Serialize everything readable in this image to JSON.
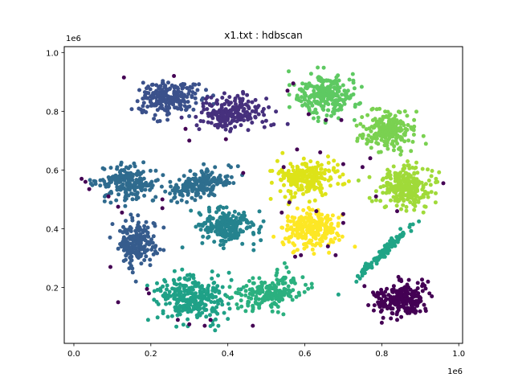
{
  "chart_data": {
    "type": "scatter",
    "title": "x1.txt : hdbscan",
    "xlabel": "",
    "ylabel": "",
    "x_offset_label": "1e6",
    "y_offset_label": "1e6",
    "xlim": [
      -0.025,
      1.01
    ],
    "ylim": [
      0.01,
      1.02
    ],
    "x_ticks": [
      0.0,
      0.2,
      0.4,
      0.6,
      0.8,
      1.0
    ],
    "x_tick_labels": [
      "0.0",
      "0.2",
      "0.4",
      "0.6",
      "0.8",
      "1.0"
    ],
    "y_ticks": [
      0.2,
      0.4,
      0.6,
      0.8,
      1.0
    ],
    "y_tick_labels": [
      "0.2",
      "0.4",
      "0.6",
      "0.8",
      "1.0"
    ],
    "grid": false,
    "legend": "none",
    "colormap": "viridis",
    "noise_color": "#440154",
    "clusters": [
      {
        "cx": 0.245,
        "cy": 0.845,
        "sx": 0.038,
        "sy": 0.028,
        "n": 230,
        "color": "#3b518b"
      },
      {
        "cx": 0.415,
        "cy": 0.795,
        "sx": 0.045,
        "sy": 0.028,
        "n": 200,
        "color": "#46307d"
      },
      {
        "cx": 0.135,
        "cy": 0.555,
        "sx": 0.038,
        "sy": 0.03,
        "n": 200,
        "color": "#2f6b8e"
      },
      {
        "cx": 0.335,
        "cy": 0.552,
        "sx": 0.045,
        "sy": 0.022,
        "n": 180,
        "color": "#2e6e8e",
        "slope": 0.35
      },
      {
        "cx": 0.165,
        "cy": 0.35,
        "sx": 0.025,
        "sy": 0.04,
        "n": 200,
        "color": "#365c8d"
      },
      {
        "cx": 0.395,
        "cy": 0.41,
        "sx": 0.04,
        "sy": 0.03,
        "n": 220,
        "color": "#25838e"
      },
      {
        "cx": 0.305,
        "cy": 0.165,
        "sx": 0.048,
        "sy": 0.035,
        "n": 280,
        "color": "#1fa187"
      },
      {
        "cx": 0.505,
        "cy": 0.185,
        "sx": 0.045,
        "sy": 0.028,
        "n": 200,
        "color": "#2bb07f",
        "slope": 0.3
      },
      {
        "cx": 0.605,
        "cy": 0.575,
        "sx": 0.04,
        "sy": 0.03,
        "n": 220,
        "color": "#dde318"
      },
      {
        "cx": 0.615,
        "cy": 0.4,
        "sx": 0.035,
        "sy": 0.032,
        "n": 250,
        "color": "#fde725"
      },
      {
        "cx": 0.655,
        "cy": 0.855,
        "sx": 0.038,
        "sy": 0.035,
        "n": 250,
        "color": "#5ec962"
      },
      {
        "cx": 0.815,
        "cy": 0.73,
        "sx": 0.035,
        "sy": 0.032,
        "n": 230,
        "color": "#7ad151"
      },
      {
        "cx": 0.86,
        "cy": 0.545,
        "sx": 0.035,
        "sy": 0.035,
        "n": 250,
        "color": "#a0da39"
      },
      {
        "cx": 0.8,
        "cy": 0.315,
        "sx": 0.035,
        "sy": 0.0,
        "n": 110,
        "color": "#20a486",
        "slope": 1.25,
        "line": true
      },
      {
        "cx": 0.85,
        "cy": 0.16,
        "sx": 0.032,
        "sy": 0.028,
        "n": 220,
        "color": "#440154"
      }
    ],
    "noise_points": [
      [
        0.13,
        0.915
      ],
      [
        0.26,
        0.92
      ],
      [
        0.29,
        0.74
      ],
      [
        0.395,
        0.705
      ],
      [
        0.3,
        0.7
      ],
      [
        0.57,
        0.895
      ],
      [
        0.555,
        0.87
      ],
      [
        0.61,
        0.79
      ],
      [
        0.655,
        0.77
      ],
      [
        0.695,
        0.77
      ],
      [
        0.58,
        0.67
      ],
      [
        0.64,
        0.66
      ],
      [
        0.545,
        0.61
      ],
      [
        0.7,
        0.62
      ],
      [
        0.75,
        0.61
      ],
      [
        0.77,
        0.64
      ],
      [
        0.96,
        0.555
      ],
      [
        0.785,
        0.51
      ],
      [
        0.84,
        0.46
      ],
      [
        0.02,
        0.57
      ],
      [
        0.03,
        0.56
      ],
      [
        0.04,
        0.535
      ],
      [
        0.09,
        0.51
      ],
      [
        0.115,
        0.475
      ],
      [
        0.125,
        0.455
      ],
      [
        0.23,
        0.5
      ],
      [
        0.23,
        0.47
      ],
      [
        0.44,
        0.59
      ],
      [
        0.56,
        0.49
      ],
      [
        0.54,
        0.455
      ],
      [
        0.7,
        0.45
      ],
      [
        0.7,
        0.42
      ],
      [
        0.63,
        0.46
      ],
      [
        0.68,
        0.31
      ],
      [
        0.59,
        0.31
      ],
      [
        0.575,
        0.305
      ],
      [
        0.66,
        0.34
      ],
      [
        0.095,
        0.27
      ],
      [
        0.115,
        0.15
      ],
      [
        0.19,
        0.195
      ],
      [
        0.195,
        0.18
      ],
      [
        0.27,
        0.09
      ],
      [
        0.3,
        0.075
      ],
      [
        0.34,
        0.07
      ],
      [
        0.355,
        0.09
      ],
      [
        0.465,
        0.07
      ],
      [
        0.755,
        0.205
      ],
      [
        0.785,
        0.17
      ],
      [
        0.79,
        0.15
      ],
      [
        0.765,
        0.14
      ],
      [
        0.92,
        0.22
      ],
      [
        0.93,
        0.17
      ],
      [
        0.8,
        0.08
      ],
      [
        0.84,
        0.09
      ]
    ]
  }
}
